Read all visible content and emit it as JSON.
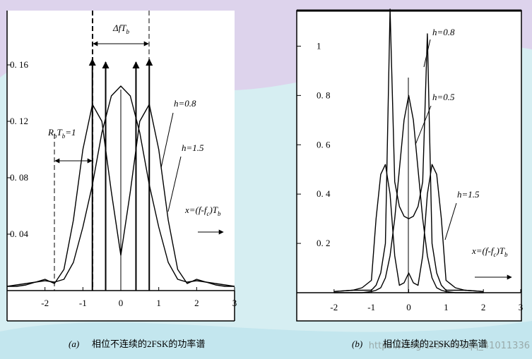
{
  "chart_data": [
    {
      "type": "line",
      "label": "(a)",
      "caption": "相位不连续的2FSK的功率谱",
      "xlim": [
        -3,
        3
      ],
      "ylim": [
        0,
        0.2
      ],
      "xticks": [
        -2,
        -1,
        0,
        1,
        2,
        3
      ],
      "yticks": [
        {
          "value": 0.04,
          "label": "0. 04"
        },
        {
          "value": 0.08,
          "label": "0. 08"
        },
        {
          "value": 0.12,
          "label": "0. 12"
        },
        {
          "value": 0.16,
          "label": "0. 16"
        }
      ],
      "x": [
        -3,
        -2.75,
        -2.5,
        -2.25,
        -2,
        -1.75,
        -1.5,
        -1.25,
        -1,
        -0.75,
        -0.5,
        -0.25,
        0,
        0.25,
        0.5,
        0.75,
        1,
        1.25,
        1.5,
        1.75,
        2,
        2.25,
        2.5,
        2.75,
        3
      ],
      "series": [
        {
          "color": "#000000",
          "values": [
            0.003,
            0.004,
            0.005,
            0.006,
            0.007,
            0.006,
            0.008,
            0.02,
            0.045,
            0.075,
            0.112,
            0.138,
            0.145,
            0.138,
            0.112,
            0.075,
            0.045,
            0.02,
            0.008,
            0.006,
            0.007,
            0.006,
            0.005,
            0.004,
            0.003
          ]
        },
        {
          "color": "#000000",
          "values": [
            0.003,
            0.003,
            0.004,
            0.006,
            0.008,
            0.005,
            0.015,
            0.05,
            0.1,
            0.132,
            0.12,
            0.07,
            0.025,
            0.07,
            0.12,
            0.132,
            0.1,
            0.05,
            0.015,
            0.005,
            0.008,
            0.006,
            0.004,
            0.003,
            0.003
          ]
        }
      ],
      "impulses": {
        "x": [
          -0.75,
          -0.4,
          0.4,
          0.75
        ],
        "values": [
          0.164,
          0.162,
          0.162,
          0.164
        ]
      },
      "annotations": [
        {
          "parts": [
            "ΔfT",
            "b"
          ]
        },
        {
          "parts": [
            "R",
            "b",
            "T",
            "b",
            "=1"
          ]
        },
        {
          "parts": [
            "h=0.8"
          ]
        },
        {
          "parts": [
            "h=1.5"
          ]
        },
        {
          "parts": [
            "x=(f-f",
            "c",
            ")T",
            "b"
          ]
        }
      ]
    },
    {
      "type": "line",
      "label": "(b)",
      "caption": "相位连续的2FSK的功率谱",
      "xlim": [
        -3,
        3
      ],
      "ylim": [
        0,
        1.15
      ],
      "xticks": [
        -2,
        -1,
        0,
        1,
        2,
        3
      ],
      "yticks": [
        {
          "value": 0.2,
          "label": "0. 2"
        },
        {
          "value": 0.4,
          "label": "0. 4"
        },
        {
          "value": 0.6,
          "label": "0. 6"
        },
        {
          "value": 0.8,
          "label": "0. 8"
        },
        1
      ],
      "x": [
        -2,
        -1.5,
        -1.25,
        -1,
        -0.875,
        -0.75,
        -0.625,
        -0.5,
        -0.375,
        -0.25,
        -0.125,
        0,
        0.125,
        0.25,
        0.375,
        0.5,
        0.625,
        0.75,
        0.875,
        1,
        1.25,
        1.5,
        2
      ],
      "series": [
        {
          "color": "#000000",
          "values": [
            0.005,
            0.01,
            0.01,
            0.01,
            0.03,
            0.08,
            0.2,
            1.15,
            0.45,
            0.35,
            0.31,
            0.3,
            0.31,
            0.35,
            0.45,
            1.05,
            0.2,
            0.08,
            0.03,
            0.01,
            0.01,
            0.01,
            0.005
          ]
        },
        {
          "color": "#000000",
          "values": [
            0,
            0,
            0,
            0.005,
            0.01,
            0.02,
            0.06,
            0.15,
            0.3,
            0.5,
            0.7,
            0.8,
            0.7,
            0.5,
            0.3,
            0.15,
            0.06,
            0.02,
            0.01,
            0.005,
            0,
            0,
            0
          ]
        },
        {
          "color": "#000000",
          "values": [
            0.005,
            0.01,
            0.02,
            0.05,
            0.3,
            0.48,
            0.52,
            0.4,
            0.15,
            0.03,
            0.04,
            0.08,
            0.04,
            0.03,
            0.15,
            0.4,
            0.52,
            0.48,
            0.3,
            0.05,
            0.02,
            0.01,
            0.005
          ]
        }
      ],
      "annotations": [
        {
          "parts": [
            "h=0.8"
          ]
        },
        {
          "parts": [
            "h=0.5"
          ]
        },
        {
          "parts": [
            "h=1.5"
          ]
        },
        {
          "parts": [
            "x=(f-f",
            "c",
            ")T",
            "b"
          ]
        }
      ]
    }
  ],
  "watermark": "https://blog.csdn.net/qq_41011336"
}
